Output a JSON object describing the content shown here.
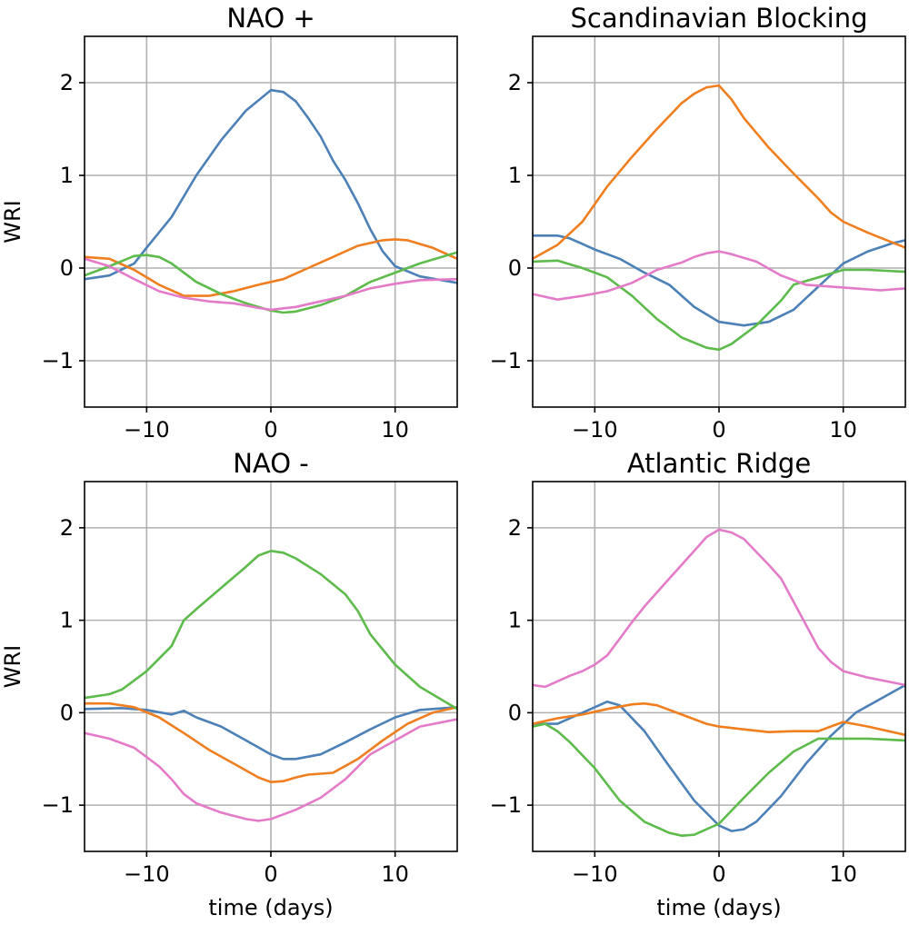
{
  "colors": {
    "blue": "#4c81b7",
    "orange": "#f07e1e",
    "green": "#5dbb4b",
    "pink": "#e47bc8"
  },
  "chart_data": [
    {
      "type": "line",
      "title": "NAO +",
      "xlabel": "",
      "ylabel": "WRI",
      "xlim": [
        -15,
        15
      ],
      "ylim": [
        -1.5,
        2.5
      ],
      "xticks": [
        -10,
        0,
        10
      ],
      "xtick_labels": [
        "−10",
        "0",
        "10"
      ],
      "yticks": [
        -1,
        0,
        1,
        2
      ],
      "ytick_labels": [
        "−1",
        "0",
        "1",
        "2"
      ],
      "grid": true,
      "series": [
        {
          "color": "#4c81b7",
          "x": [
            -15,
            -13,
            -11,
            -10,
            -8,
            -6,
            -4,
            -2,
            0,
            1,
            2,
            3,
            4,
            5,
            6,
            7,
            8,
            9,
            10,
            12,
            15
          ],
          "y": [
            -0.12,
            -0.08,
            0.05,
            0.22,
            0.55,
            1.0,
            1.38,
            1.7,
            1.92,
            1.9,
            1.8,
            1.62,
            1.42,
            1.16,
            0.95,
            0.7,
            0.42,
            0.18,
            0.02,
            -0.09,
            -0.16
          ]
        },
        {
          "color": "#f07e1e",
          "x": [
            -15,
            -13,
            -11,
            -9,
            -7,
            -5,
            -3,
            -1,
            1,
            3,
            5,
            7,
            9,
            10,
            11,
            13,
            15
          ],
          "y": [
            0.12,
            0.1,
            -0.02,
            -0.18,
            -0.3,
            -0.3,
            -0.25,
            -0.18,
            -0.12,
            0.0,
            0.12,
            0.24,
            0.3,
            0.31,
            0.3,
            0.22,
            0.1
          ]
        },
        {
          "color": "#5dbb4b",
          "x": [
            -15,
            -13,
            -11,
            -10,
            -9,
            -8,
            -6,
            -4,
            -2,
            0,
            1,
            2,
            4,
            6,
            8,
            10,
            12,
            15
          ],
          "y": [
            -0.08,
            0.02,
            0.13,
            0.14,
            0.12,
            0.05,
            -0.15,
            -0.28,
            -0.38,
            -0.46,
            -0.48,
            -0.47,
            -0.4,
            -0.3,
            -0.15,
            -0.05,
            0.05,
            0.17
          ]
        },
        {
          "color": "#e47bc8",
          "x": [
            -15,
            -13,
            -11,
            -9,
            -7,
            -5,
            -3,
            -1,
            0,
            2,
            4,
            6,
            8,
            10,
            12,
            15
          ],
          "y": [
            0.1,
            0.02,
            -0.12,
            -0.25,
            -0.32,
            -0.36,
            -0.38,
            -0.43,
            -0.45,
            -0.42,
            -0.36,
            -0.3,
            -0.22,
            -0.17,
            -0.13,
            -0.12
          ]
        }
      ]
    },
    {
      "type": "line",
      "title": "Scandinavian Blocking",
      "xlabel": "",
      "ylabel": "",
      "xlim": [
        -15,
        15
      ],
      "ylim": [
        -1.5,
        2.5
      ],
      "xticks": [
        -10,
        0,
        10
      ],
      "xtick_labels": [
        "−10",
        "0",
        "10"
      ],
      "yticks": [
        -1,
        0,
        1,
        2
      ],
      "ytick_labels": [
        "−1",
        "0",
        "1",
        "2"
      ],
      "grid": true,
      "series": [
        {
          "color": "#4c81b7",
          "x": [
            -15,
            -13,
            -12,
            -10,
            -8,
            -6,
            -4,
            -2,
            0,
            2,
            4,
            6,
            8,
            10,
            12,
            14,
            15
          ],
          "y": [
            0.35,
            0.35,
            0.32,
            0.2,
            0.1,
            -0.05,
            -0.18,
            -0.42,
            -0.58,
            -0.62,
            -0.58,
            -0.45,
            -0.2,
            0.05,
            0.18,
            0.27,
            0.3
          ]
        },
        {
          "color": "#f07e1e",
          "x": [
            -15,
            -13,
            -11,
            -9,
            -7,
            -5,
            -3,
            -2,
            -1,
            0,
            1,
            2,
            4,
            6,
            8,
            9,
            10,
            12,
            15
          ],
          "y": [
            0.1,
            0.25,
            0.5,
            0.88,
            1.2,
            1.5,
            1.78,
            1.88,
            1.95,
            1.97,
            1.82,
            1.62,
            1.3,
            1.02,
            0.75,
            0.6,
            0.5,
            0.38,
            0.22
          ]
        },
        {
          "color": "#5dbb4b",
          "x": [
            -15,
            -13,
            -11,
            -9,
            -7,
            -5,
            -3,
            -1,
            0,
            1,
            3,
            5,
            6,
            8,
            10,
            12,
            15
          ],
          "y": [
            0.07,
            0.08,
            0.0,
            -0.1,
            -0.3,
            -0.55,
            -0.75,
            -0.86,
            -0.88,
            -0.82,
            -0.62,
            -0.35,
            -0.18,
            -0.1,
            -0.02,
            -0.02,
            -0.04
          ]
        },
        {
          "color": "#e47bc8",
          "x": [
            -15,
            -13,
            -11,
            -9,
            -7,
            -5,
            -3,
            -2,
            -1,
            0,
            1,
            3,
            5,
            7,
            9,
            11,
            13,
            15
          ],
          "y": [
            -0.28,
            -0.34,
            -0.3,
            -0.25,
            -0.16,
            -0.02,
            0.06,
            0.12,
            0.16,
            0.18,
            0.15,
            0.07,
            -0.08,
            -0.18,
            -0.2,
            -0.22,
            -0.24,
            -0.22
          ]
        }
      ]
    },
    {
      "type": "line",
      "title": "NAO -",
      "xlabel": "time (days)",
      "ylabel": "WRI",
      "xlim": [
        -15,
        15
      ],
      "ylim": [
        -1.5,
        2.5
      ],
      "xticks": [
        -10,
        0,
        10
      ],
      "xtick_labels": [
        "−10",
        "0",
        "10"
      ],
      "yticks": [
        -1,
        0,
        1,
        2
      ],
      "ytick_labels": [
        "−1",
        "0",
        "1",
        "2"
      ],
      "grid": true,
      "series": [
        {
          "color": "#4c81b7",
          "x": [
            -15,
            -12,
            -10,
            -8,
            -7,
            -6,
            -4,
            -2,
            0,
            1,
            2,
            4,
            6,
            8,
            10,
            12,
            15
          ],
          "y": [
            0.04,
            0.05,
            0.03,
            -0.02,
            0.02,
            -0.05,
            -0.15,
            -0.3,
            -0.45,
            -0.5,
            -0.5,
            -0.45,
            -0.32,
            -0.18,
            -0.05,
            0.03,
            0.06
          ]
        },
        {
          "color": "#f07e1e",
          "x": [
            -15,
            -13,
            -11,
            -9,
            -7,
            -5,
            -3,
            -1,
            0,
            1,
            2,
            3,
            5,
            7,
            9,
            11,
            13,
            15
          ],
          "y": [
            0.1,
            0.1,
            0.06,
            -0.05,
            -0.22,
            -0.4,
            -0.55,
            -0.7,
            -0.75,
            -0.74,
            -0.7,
            -0.67,
            -0.65,
            -0.5,
            -0.3,
            -0.12,
            0.0,
            0.06
          ]
        },
        {
          "color": "#5dbb4b",
          "x": [
            -15,
            -13,
            -12,
            -11,
            -10,
            -8,
            -7,
            -6,
            -4,
            -2,
            -1,
            0,
            1,
            2,
            4,
            6,
            7,
            8,
            10,
            12,
            15
          ],
          "y": [
            0.16,
            0.2,
            0.25,
            0.35,
            0.45,
            0.72,
            1.0,
            1.12,
            1.35,
            1.58,
            1.7,
            1.75,
            1.73,
            1.67,
            1.5,
            1.28,
            1.1,
            0.85,
            0.52,
            0.28,
            0.04
          ]
        },
        {
          "color": "#e47bc8",
          "x": [
            -15,
            -13,
            -11,
            -9,
            -8,
            -7,
            -6,
            -4,
            -2,
            -1,
            0,
            1,
            2,
            4,
            6,
            8,
            10,
            12,
            15
          ],
          "y": [
            -0.22,
            -0.28,
            -0.38,
            -0.58,
            -0.72,
            -0.88,
            -0.98,
            -1.08,
            -1.15,
            -1.17,
            -1.15,
            -1.1,
            -1.05,
            -0.92,
            -0.72,
            -0.45,
            -0.3,
            -0.15,
            -0.07
          ]
        }
      ]
    },
    {
      "type": "line",
      "title": "Atlantic Ridge",
      "xlabel": "time (days)",
      "ylabel": "",
      "xlim": [
        -15,
        15
      ],
      "ylim": [
        -1.5,
        2.5
      ],
      "xticks": [
        -10,
        0,
        10
      ],
      "xtick_labels": [
        "−10",
        "0",
        "10"
      ],
      "yticks": [
        -1,
        0,
        1,
        2
      ],
      "ytick_labels": [
        "−1",
        "0",
        "1",
        "2"
      ],
      "grid": true,
      "series": [
        {
          "color": "#4c81b7",
          "x": [
            -15,
            -13,
            -11,
            -9,
            -8,
            -6,
            -4,
            -2,
            0,
            1,
            2,
            3,
            5,
            7,
            9,
            11,
            13,
            15
          ],
          "y": [
            -0.12,
            -0.12,
            0.0,
            0.12,
            0.08,
            -0.2,
            -0.58,
            -0.95,
            -1.22,
            -1.28,
            -1.26,
            -1.18,
            -0.9,
            -0.55,
            -0.25,
            0.0,
            0.15,
            0.3
          ]
        },
        {
          "color": "#f07e1e",
          "x": [
            -15,
            -13,
            -11,
            -9,
            -7,
            -6,
            -5,
            -3,
            -1,
            0,
            2,
            4,
            6,
            8,
            10,
            12,
            15
          ],
          "y": [
            -0.12,
            -0.06,
            -0.02,
            0.04,
            0.09,
            0.1,
            0.08,
            -0.02,
            -0.12,
            -0.15,
            -0.18,
            -0.21,
            -0.2,
            -0.2,
            -0.1,
            -0.15,
            -0.24
          ]
        },
        {
          "color": "#5dbb4b",
          "x": [
            -15,
            -14,
            -13,
            -12,
            -10,
            -8,
            -6,
            -4,
            -3,
            -2,
            0,
            2,
            4,
            6,
            7,
            8,
            10,
            12,
            15
          ],
          "y": [
            -0.15,
            -0.12,
            -0.2,
            -0.32,
            -0.6,
            -0.95,
            -1.18,
            -1.3,
            -1.33,
            -1.32,
            -1.2,
            -0.92,
            -0.65,
            -0.42,
            -0.35,
            -0.28,
            -0.28,
            -0.28,
            -0.3
          ]
        },
        {
          "color": "#e47bc8",
          "x": [
            -15,
            -14,
            -13,
            -12,
            -11,
            -10,
            -9,
            -8,
            -7,
            -6,
            -4,
            -2,
            -1,
            0,
            1,
            2,
            4,
            5,
            6,
            7,
            8,
            9,
            10,
            12,
            15
          ],
          "y": [
            0.3,
            0.28,
            0.34,
            0.4,
            0.45,
            0.52,
            0.62,
            0.8,
            0.98,
            1.15,
            1.45,
            1.75,
            1.9,
            1.98,
            1.95,
            1.88,
            1.6,
            1.45,
            1.2,
            0.95,
            0.7,
            0.55,
            0.45,
            0.38,
            0.3
          ]
        }
      ]
    }
  ]
}
